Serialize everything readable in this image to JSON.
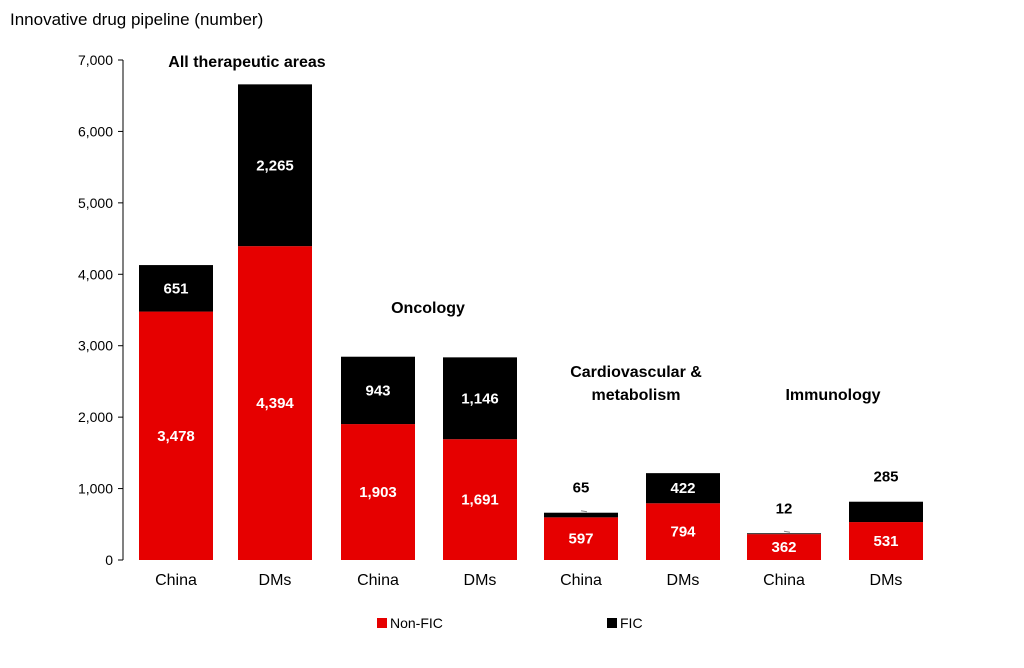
{
  "chart_data": {
    "type": "bar",
    "stacked": true,
    "title": "Innovative drug pipeline (number)",
    "xlabel": "",
    "ylabel": "",
    "ylim": [
      0,
      7000
    ],
    "yticks": [
      "0",
      "1,000",
      "2,000",
      "3,000",
      "4,000",
      "5,000",
      "6,000",
      "7,000"
    ],
    "categories": [
      "China",
      "DMs",
      "China",
      "DMs",
      "China",
      "DMs",
      "China",
      "DMs"
    ],
    "groups": [
      {
        "label": "All therapeutic areas",
        "categories": [
          0,
          1
        ]
      },
      {
        "label": "Oncology",
        "categories": [
          2,
          3
        ]
      },
      {
        "label": "Cardiovascular &\nmetabolism",
        "categories": [
          4,
          5
        ]
      },
      {
        "label": "Immunology",
        "categories": [
          6,
          7
        ]
      }
    ],
    "series": [
      {
        "name": "Non-FIC",
        "color": "#e60000",
        "values": [
          3478,
          4394,
          1903,
          1691,
          597,
          794,
          362,
          531
        ],
        "labels": [
          "3,478",
          "4,394",
          "1,903",
          "1,691",
          "597",
          "794",
          "362",
          "531"
        ]
      },
      {
        "name": "FIC",
        "color": "#000000",
        "values": [
          651,
          2265,
          943,
          1146,
          65,
          422,
          12,
          285
        ],
        "labels": [
          "651",
          "2,265",
          "943",
          "1,146",
          "65",
          "422",
          "12",
          "285"
        ]
      }
    ],
    "legend_position": "bottom",
    "grid": false
  }
}
